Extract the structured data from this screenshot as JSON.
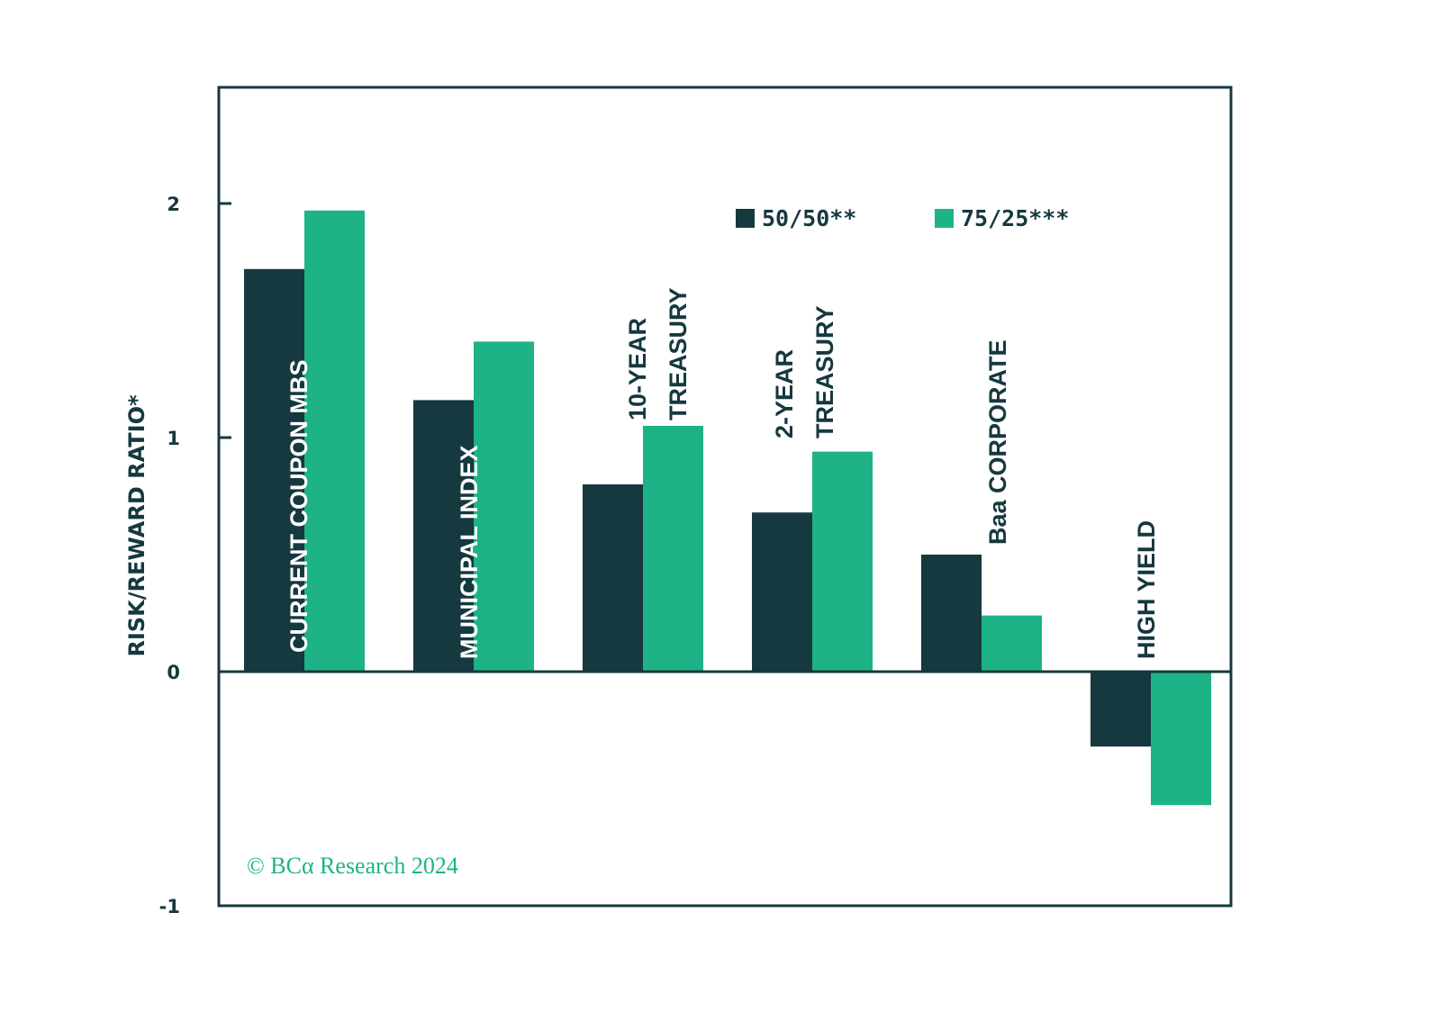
{
  "chart_data": {
    "type": "bar",
    "ylabel": "RISK/REWARD RATIO*",
    "ylim": [
      -1,
      2.5
    ],
    "yticks": [
      2,
      1,
      0,
      -1
    ],
    "grid": false,
    "legend_placement": "top-right",
    "categories": [
      [
        "CURRENT COUPON MBS"
      ],
      [
        "MUNICIPAL INDEX"
      ],
      [
        "10-YEAR",
        "TREASURY"
      ],
      [
        "2-YEAR",
        "TREASURY"
      ],
      [
        "Baa CORPORATE"
      ],
      [
        "HIGH YIELD"
      ]
    ],
    "series": [
      {
        "name": "50/50**",
        "color": "#16383f",
        "values": [
          1.72,
          1.16,
          0.8,
          0.68,
          0.5,
          -0.32
        ]
      },
      {
        "name": "75/25***",
        "color": "#1db387",
        "values": [
          1.97,
          1.41,
          1.05,
          0.94,
          0.24,
          -0.57
        ]
      }
    ]
  },
  "copyright": "© BCα Research 2024"
}
